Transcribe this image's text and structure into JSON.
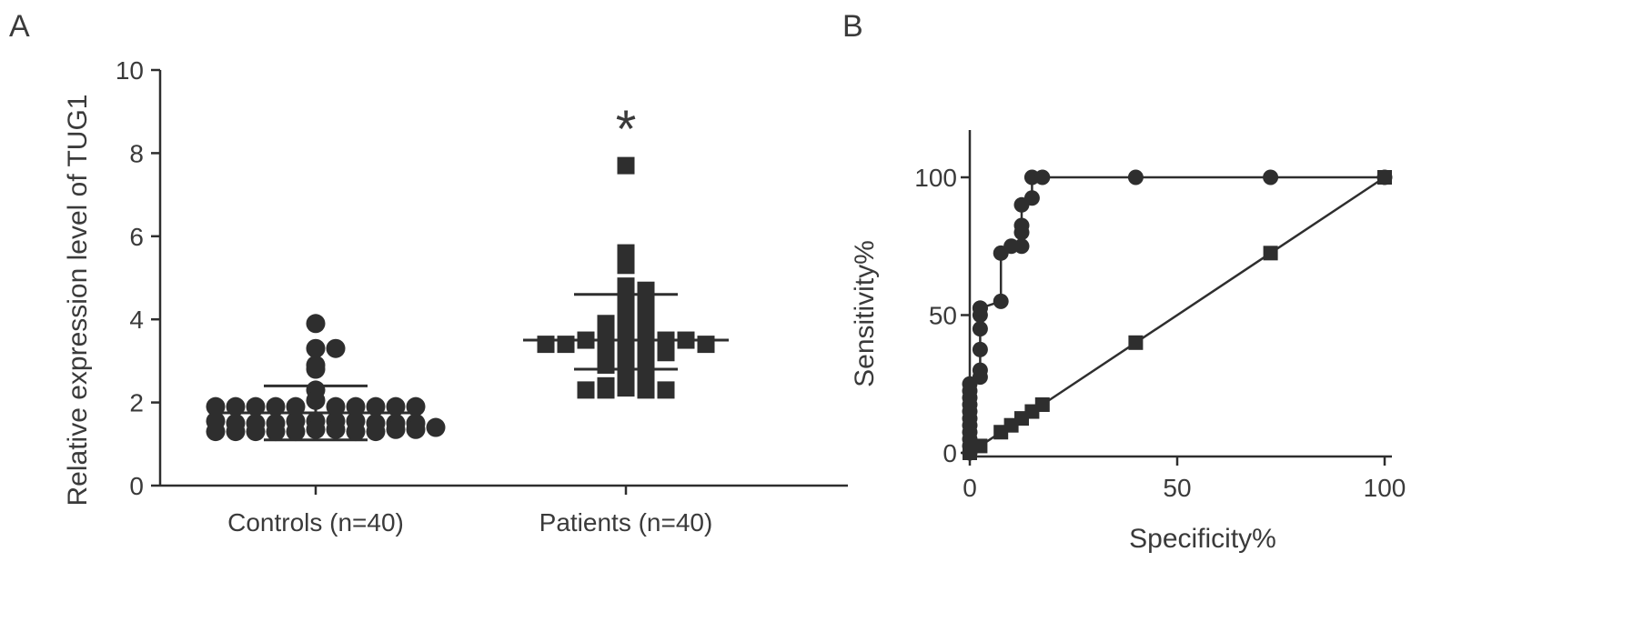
{
  "panel_labels": {
    "a": "A",
    "b": "B"
  },
  "colors": {
    "ink": "#2e2e2e",
    "text": "#3a3a3a",
    "background": "#ffffff"
  },
  "chart_data": [
    {
      "panel": "A",
      "type": "scatter",
      "ylabel": "Relative expression level of TUG1",
      "ylim": [
        0,
        10
      ],
      "yticks": [
        "0",
        "2",
        "4",
        "6",
        "8",
        "10"
      ],
      "categories": [
        "Controls (n=40)",
        "Patients (n=40)"
      ],
      "annotation": "*",
      "series": [
        {
          "category": "Controls (n=40)",
          "marker": "circle",
          "mean": 1.75,
          "sd_low": 1.1,
          "sd_high": 2.4,
          "values": [
            3.9,
            3.3,
            3.3,
            2.8,
            2.9,
            2.3,
            2.05,
            1.9,
            1.9,
            1.9,
            1.9,
            1.9,
            1.9,
            1.9,
            1.9,
            1.9,
            1.9,
            1.55,
            1.55,
            1.55,
            1.55,
            1.5,
            1.5,
            1.5,
            1.5,
            1.5,
            1.5,
            1.55,
            1.35,
            1.35,
            1.3,
            1.3,
            1.3,
            1.3,
            1.3,
            1.35,
            1.3,
            1.35,
            1.4,
            1.3
          ]
        },
        {
          "category": "Patients (n=40)",
          "marker": "square",
          "mean": 3.5,
          "sd_low": 2.8,
          "sd_high": 4.6,
          "values": [
            7.7,
            5.6,
            5.3,
            4.8,
            4.7,
            4.6,
            4.5,
            4.2,
            4.2,
            4.1,
            4.0,
            3.9,
            3.7,
            3.7,
            3.6,
            3.5,
            3.5,
            3.5,
            3.5,
            3.5,
            3.4,
            3.4,
            3.4,
            3.3,
            3.3,
            3.2,
            3.2,
            3.1,
            3.1,
            2.9,
            2.7,
            2.7,
            2.5,
            2.4,
            2.4,
            2.35,
            2.3,
            2.3,
            2.3,
            2.3
          ]
        }
      ]
    },
    {
      "panel": "B",
      "type": "line",
      "xlabel": "Specificity%",
      "ylabel": "Sensitivity%",
      "xlim": [
        0,
        100
      ],
      "ylim": [
        0,
        100
      ],
      "xticks": [
        "0",
        "50",
        "100"
      ],
      "yticks": [
        "0",
        "50",
        "100"
      ],
      "series": [
        {
          "marker": "circle",
          "x": [
            0,
            0,
            0,
            0,
            0,
            0,
            0,
            0,
            0,
            0,
            0,
            2.5,
            2.5,
            2.5,
            2.5,
            2.5,
            2.5,
            2.5,
            7.5,
            7.5,
            10,
            12.5,
            12.5,
            12.5,
            12.5,
            15,
            15,
            17.5,
            40,
            72.5,
            100
          ],
          "y": [
            0,
            2.5,
            5,
            7.5,
            10,
            12.5,
            15,
            17.5,
            20,
            22.5,
            25,
            27.5,
            30,
            37.5,
            45,
            50,
            52.5,
            52.5,
            55,
            72.5,
            75,
            75,
            80,
            82.5,
            90,
            92.5,
            100,
            100,
            100,
            100,
            100
          ]
        },
        {
          "marker": "square",
          "x": [
            0,
            2.5,
            7.5,
            10,
            12.5,
            15,
            17.5,
            40,
            72.5,
            100
          ],
          "y": [
            0,
            2.5,
            7.5,
            10,
            12.5,
            15,
            17.5,
            40,
            72.5,
            100
          ]
        }
      ]
    }
  ]
}
